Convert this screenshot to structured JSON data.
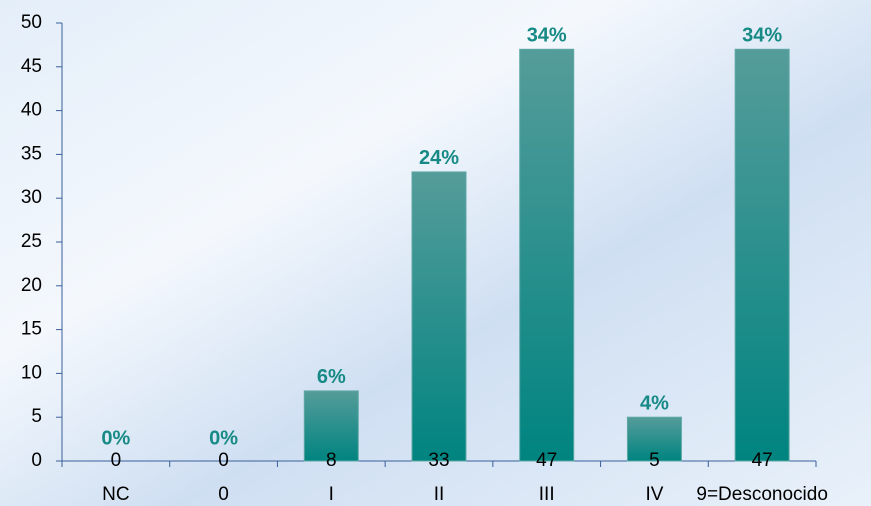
{
  "chart_data": {
    "type": "bar",
    "categories": [
      "NC",
      "0",
      "I",
      "II",
      "III",
      "IV",
      "9=Desconocido"
    ],
    "values": [
      0,
      0,
      8,
      33,
      47,
      5,
      47
    ],
    "percent_labels": [
      "0%",
      "0%",
      "6%",
      "24%",
      "34%",
      "4%",
      "34%"
    ],
    "color": "#008480",
    "ylim": [
      0,
      50
    ],
    "yticks": [
      0,
      5,
      10,
      15,
      20,
      25,
      30,
      35,
      40,
      45,
      50
    ]
  }
}
